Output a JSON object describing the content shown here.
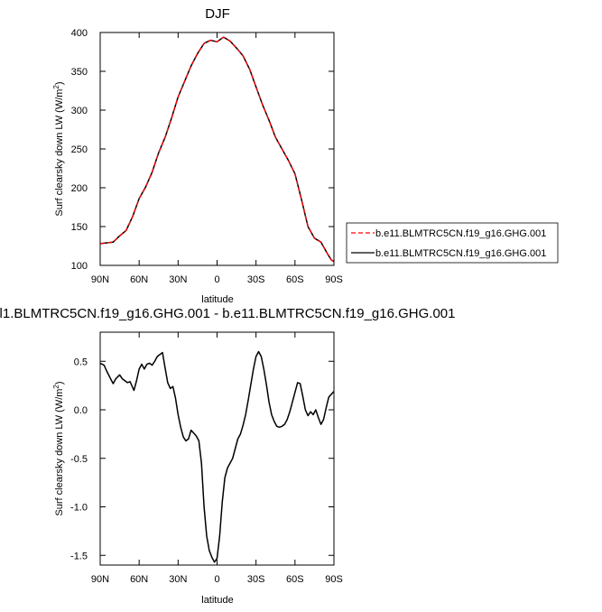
{
  "chart_data": [
    {
      "type": "line",
      "title": "DJF",
      "xlabel": "latitude",
      "ylabel_main": "Surf clearsky down LW (W/m",
      "ylabel_sup": "2",
      "ylabel_end": ")",
      "xlim": [
        -90,
        90
      ],
      "ylim": [
        100,
        400
      ],
      "xticks": [
        -90,
        -60,
        -30,
        0,
        30,
        60,
        90
      ],
      "xtick_labels": [
        "90N",
        "60N",
        "30N",
        "0",
        "30S",
        "60S",
        "90S"
      ],
      "yticks": [
        100,
        150,
        200,
        250,
        300,
        350,
        400
      ],
      "ytick_labels": [
        "100",
        "150",
        "200",
        "250",
        "300",
        "350",
        "400"
      ],
      "legend_position": "right",
      "series": [
        {
          "name": "b.e11.BLMTRC5CN.f19_g16.GHG.001",
          "color": "#ff0000",
          "dash": "dashed",
          "x": [
            -90,
            -80,
            -75,
            -70,
            -65,
            -60,
            -55,
            -50,
            -45,
            -40,
            -35,
            -30,
            -25,
            -20,
            -15,
            -10,
            -5,
            0,
            5,
            10,
            15,
            20,
            25,
            30,
            35,
            40,
            45,
            50,
            55,
            60,
            65,
            70,
            75,
            80,
            85,
            88,
            90
          ],
          "y": [
            128,
            130,
            138,
            145,
            163,
            186,
            201,
            220,
            245,
            265,
            290,
            317,
            337,
            357,
            373,
            386,
            390,
            388,
            394,
            389,
            380,
            370,
            353,
            330,
            307,
            287,
            265,
            250,
            235,
            218,
            185,
            150,
            135,
            130,
            115,
            107,
            105
          ]
        },
        {
          "name": "b.e11.BLMTRC5CN.f19_g16.GHG.001",
          "color": "#000000",
          "dash": "solid",
          "x": [
            -90,
            -80,
            -75,
            -70,
            -65,
            -60,
            -55,
            -50,
            -45,
            -40,
            -35,
            -30,
            -25,
            -20,
            -15,
            -10,
            -5,
            0,
            5,
            10,
            15,
            20,
            25,
            30,
            35,
            40,
            45,
            50,
            55,
            60,
            65,
            70,
            75,
            80,
            85,
            88,
            90
          ],
          "y": [
            128,
            130,
            138,
            145,
            163,
            186,
            201,
            220,
            245,
            265,
            290,
            317,
            337,
            357,
            373,
            386,
            390,
            388,
            394,
            389,
            380,
            370,
            353,
            330,
            307,
            287,
            265,
            250,
            235,
            218,
            185,
            150,
            135,
            130,
            115,
            107,
            105
          ]
        }
      ]
    },
    {
      "type": "line",
      "title": "l1.BLMTRC5CN.f19_g16.GHG.001 - b.e11.BLMTRC5CN.f19_g16.GHG.001",
      "xlabel": "latitude",
      "ylabel_main": "Surf clearsky down LW (W/m",
      "ylabel_sup": "2",
      "ylabel_end": ")",
      "xlim": [
        -90,
        90
      ],
      "ylim": [
        -1.6,
        0.8
      ],
      "xticks": [
        -90,
        -60,
        -30,
        0,
        30,
        60,
        90
      ],
      "xtick_labels": [
        "90N",
        "60N",
        "30N",
        "0",
        "30S",
        "60S",
        "90S"
      ],
      "yticks": [
        -1.5,
        -1.0,
        -0.5,
        0.0,
        0.5
      ],
      "ytick_labels": [
        "-1.5",
        "-1.0",
        "-0.5",
        "0.0",
        "0.5"
      ],
      "series": [
        {
          "color": "#000000",
          "dash": "solid",
          "x": [
            -90,
            -87,
            -85,
            -82,
            -80,
            -78,
            -75,
            -73,
            -71,
            -69,
            -67,
            -64,
            -62,
            -60,
            -58,
            -56,
            -54,
            -52,
            -50,
            -48,
            -46,
            -44,
            -42,
            -40,
            -38,
            -36,
            -34,
            -32,
            -30,
            -28,
            -26,
            -24,
            -22,
            -20,
            -18,
            -16,
            -14,
            -12,
            -10,
            -8,
            -6,
            -4,
            -2,
            0,
            2,
            4,
            6,
            8,
            10,
            12,
            14,
            16,
            18,
            20,
            22,
            24,
            26,
            28,
            30,
            32,
            34,
            36,
            38,
            40,
            42,
            44,
            46,
            48,
            50,
            52,
            54,
            56,
            58,
            60,
            62,
            64,
            66,
            68,
            70,
            72,
            74,
            76,
            78,
            80,
            82,
            84,
            86,
            88,
            90
          ],
          "y": [
            0.48,
            0.46,
            0.4,
            0.32,
            0.27,
            0.32,
            0.36,
            0.32,
            0.3,
            0.28,
            0.29,
            0.2,
            0.3,
            0.42,
            0.47,
            0.42,
            0.47,
            0.48,
            0.46,
            0.5,
            0.55,
            0.57,
            0.59,
            0.43,
            0.28,
            0.22,
            0.24,
            0.12,
            -0.05,
            -0.18,
            -0.28,
            -0.32,
            -0.3,
            -0.21,
            -0.24,
            -0.27,
            -0.32,
            -0.55,
            -1.0,
            -1.3,
            -1.45,
            -1.52,
            -1.57,
            -1.53,
            -1.3,
            -0.95,
            -0.7,
            -0.6,
            -0.55,
            -0.5,
            -0.4,
            -0.3,
            -0.25,
            -0.16,
            -0.05,
            0.1,
            0.26,
            0.42,
            0.55,
            0.6,
            0.55,
            0.42,
            0.26,
            0.08,
            -0.05,
            -0.12,
            -0.17,
            -0.18,
            -0.17,
            -0.15,
            -0.1,
            -0.02,
            0.08,
            0.18,
            0.28,
            0.27,
            0.14,
            0.0,
            -0.06,
            -0.02,
            -0.05,
            0.0,
            -0.08,
            -0.15,
            -0.1,
            0.02,
            0.13,
            0.16,
            0.19
          ]
        }
      ]
    }
  ]
}
